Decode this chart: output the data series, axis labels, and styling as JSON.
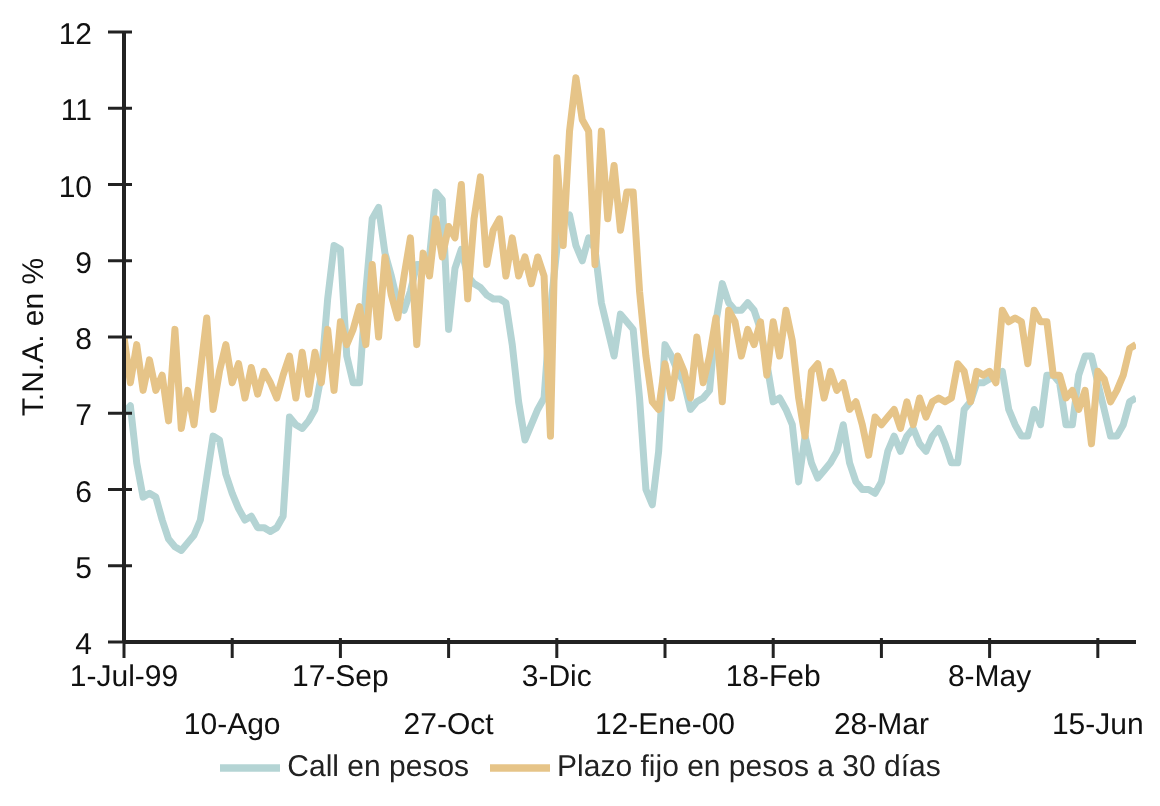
{
  "chart_data": {
    "type": "line",
    "ylabel": "T.N.A. en %",
    "categories": [
      "1-Jul-99",
      null,
      null,
      null,
      null,
      null,
      null,
      null,
      null,
      null,
      null,
      null,
      null,
      null,
      null,
      null,
      null,
      "10-Ago",
      null,
      null,
      null,
      null,
      null,
      null,
      null,
      null,
      null,
      null,
      null,
      null,
      null,
      null,
      null,
      null,
      "17-Sep",
      null,
      null,
      null,
      null,
      null,
      null,
      null,
      null,
      null,
      null,
      null,
      null,
      null,
      null,
      null,
      null,
      "27-Oct",
      null,
      null,
      null,
      null,
      null,
      null,
      null,
      null,
      null,
      null,
      null,
      null,
      null,
      null,
      null,
      null,
      "3-Dic",
      null,
      null,
      null,
      null,
      null,
      null,
      null,
      null,
      null,
      null,
      null,
      null,
      null,
      null,
      null,
      null,
      "12-Ene-00",
      null,
      null,
      null,
      null,
      null,
      null,
      null,
      null,
      null,
      null,
      null,
      null,
      null,
      null,
      null,
      null,
      "18-Feb",
      null,
      null,
      null,
      null,
      null,
      null,
      null,
      null,
      null,
      null,
      null,
      null,
      null,
      null,
      null,
      null,
      "28-Mar",
      null,
      null,
      null,
      null,
      null,
      null,
      null,
      null,
      null,
      null,
      null,
      null,
      null,
      null,
      null,
      null,
      "8-May",
      null,
      null,
      null,
      null,
      null,
      null,
      null,
      null,
      null,
      null,
      null,
      null,
      null,
      null,
      null,
      null,
      "15-Jun",
      null,
      null,
      null,
      null,
      null,
      null
    ],
    "series": [
      {
        "name": "Call en pesos",
        "color": "#b4d4d4",
        "values": [
          7.0,
          7.1,
          6.35,
          5.9,
          5.95,
          5.9,
          5.6,
          5.35,
          5.25,
          5.2,
          5.3,
          5.4,
          5.6,
          6.15,
          6.7,
          6.65,
          6.2,
          5.95,
          5.75,
          5.6,
          5.65,
          5.5,
          5.5,
          5.45,
          5.5,
          5.65,
          6.95,
          6.85,
          6.8,
          6.9,
          7.05,
          7.5,
          8.5,
          9.2,
          9.15,
          7.75,
          7.4,
          7.4,
          8.6,
          9.55,
          9.7,
          9.1,
          8.8,
          8.45,
          8.35,
          8.6,
          8.95,
          8.95,
          9.05,
          9.9,
          9.8,
          8.1,
          8.9,
          9.15,
          8.8,
          8.7,
          8.65,
          8.55,
          8.5,
          8.5,
          8.45,
          7.9,
          7.15,
          6.65,
          6.85,
          7.05,
          7.2,
          8.35,
          9.15,
          9.55,
          9.6,
          9.2,
          9.0,
          9.3,
          9.15,
          8.45,
          8.1,
          7.75,
          8.3,
          8.2,
          8.1,
          7.2,
          6.0,
          5.8,
          6.5,
          7.9,
          7.75,
          7.55,
          7.4,
          7.05,
          7.15,
          7.2,
          7.3,
          8.2,
          8.7,
          8.45,
          8.35,
          8.35,
          8.45,
          8.35,
          8.1,
          7.65,
          7.15,
          7.2,
          7.05,
          6.85,
          6.1,
          6.7,
          6.35,
          6.15,
          6.25,
          6.35,
          6.5,
          6.85,
          6.35,
          6.1,
          6.0,
          6.0,
          5.95,
          6.1,
          6.5,
          6.7,
          6.5,
          6.7,
          6.8,
          6.6,
          6.5,
          6.7,
          6.8,
          6.6,
          6.35,
          6.35,
          7.05,
          7.15,
          7.4,
          7.4,
          7.45,
          7.5,
          7.55,
          7.05,
          6.85,
          6.7,
          6.7,
          7.05,
          6.85,
          7.5,
          7.5,
          7.4,
          6.85,
          6.85,
          7.5,
          7.75,
          7.75,
          7.4,
          7.05,
          6.7,
          6.7,
          6.85,
          7.15,
          7.2
        ]
      },
      {
        "name": "Plazo fijo en pesos a 30 días",
        "color": "#e6c488",
        "values": [
          8.0,
          7.4,
          7.9,
          7.3,
          7.7,
          7.3,
          7.5,
          6.9,
          8.1,
          6.8,
          7.3,
          6.85,
          7.55,
          8.25,
          7.05,
          7.55,
          7.9,
          7.4,
          7.65,
          7.2,
          7.6,
          7.25,
          7.55,
          7.4,
          7.2,
          7.5,
          7.75,
          7.2,
          7.8,
          7.25,
          7.8,
          7.4,
          8.1,
          7.3,
          8.2,
          7.9,
          8.1,
          8.4,
          7.9,
          8.95,
          8.0,
          9.05,
          8.55,
          8.25,
          8.8,
          9.3,
          7.9,
          9.1,
          8.8,
          9.55,
          9.05,
          9.45,
          9.3,
          10.0,
          8.5,
          9.55,
          10.1,
          8.95,
          9.4,
          9.55,
          8.8,
          9.3,
          8.8,
          9.05,
          8.7,
          9.05,
          8.8,
          6.7,
          10.35,
          9.2,
          10.7,
          11.4,
          10.85,
          10.7,
          8.95,
          10.7,
          9.55,
          10.25,
          9.4,
          9.9,
          9.9,
          8.6,
          7.75,
          7.15,
          7.05,
          7.65,
          7.2,
          7.75,
          7.55,
          7.2,
          8.0,
          7.4,
          7.75,
          8.25,
          7.15,
          8.35,
          8.2,
          7.75,
          8.1,
          7.9,
          8.2,
          7.5,
          8.2,
          7.75,
          8.35,
          7.95,
          7.2,
          6.7,
          7.55,
          7.65,
          7.2,
          7.55,
          7.3,
          7.4,
          7.05,
          7.15,
          6.85,
          6.45,
          6.95,
          6.85,
          6.95,
          7.05,
          6.8,
          7.15,
          6.85,
          7.2,
          6.95,
          7.15,
          7.2,
          7.15,
          7.2,
          7.65,
          7.55,
          7.15,
          7.55,
          7.5,
          7.55,
          7.4,
          8.35,
          8.2,
          8.25,
          8.2,
          7.65,
          8.35,
          8.2,
          8.2,
          7.5,
          7.5,
          7.2,
          7.3,
          7.05,
          7.3,
          6.6,
          7.55,
          7.45,
          7.15,
          7.3,
          7.5,
          7.85,
          7.9
        ]
      }
    ],
    "ylim": [
      4,
      12
    ],
    "yticks": [
      4,
      5,
      6,
      7,
      8,
      9,
      10,
      11,
      12
    ],
    "grid": false,
    "legend": "bottom"
  }
}
